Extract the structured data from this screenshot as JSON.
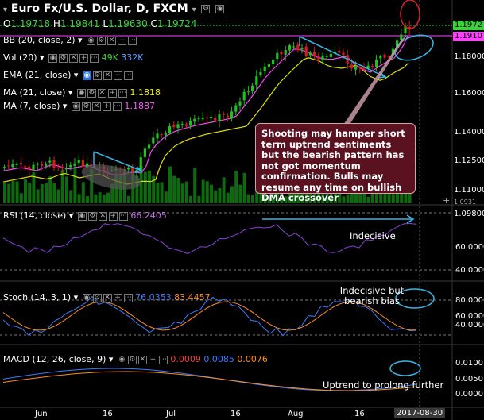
{
  "header": {
    "title": "Euro Fx/U.S. Dollar, D, FXCM",
    "ohlc": [
      {
        "label": "O",
        "value": "1.19718"
      },
      {
        "label": "H",
        "value": "1.19841"
      },
      {
        "label": "L",
        "value": "1.19630"
      },
      {
        "label": "C",
        "value": "1.19724"
      }
    ]
  },
  "indicators": [
    {
      "label": "BB (20, close, 2)",
      "value": "",
      "color": "#ffffff"
    },
    {
      "label": "Vol (20)",
      "value": "49K",
      "value2": "332K",
      "color": "#3cd23c",
      "color2": "#5aa0ff"
    },
    {
      "label": "EMA (21, close)",
      "value": "",
      "color": "#ffffff"
    },
    {
      "label": "MA (21, close)",
      "value": "1.1818",
      "color": "#f0f000"
    },
    {
      "label": "MA (7, close)",
      "value": "1.1887",
      "color": "#ff5aff"
    }
  ],
  "price_axis": {
    "labels": [
      "1.18000",
      "1.16000",
      "1.14000",
      "1.12500",
      "1.11000",
      "1.09800"
    ],
    "last_price": "1.1972",
    "ma_price": "1.1910",
    "bottom_partial": "1.0931"
  },
  "rsi": {
    "label": "RSI (14, close)",
    "value": "66.2405",
    "axis": [
      "60.0000",
      "40.0000"
    ],
    "annotation": "Indecisive"
  },
  "stoch": {
    "label": "Stoch (14, 3, 1)",
    "k": "76.0353",
    "d": "83.4457",
    "axis": [
      "80.0000",
      "60.0000",
      "40.0000"
    ],
    "annotation": "Indecisive but bearish bias"
  },
  "macd": {
    "label": "MACD (12, 26, close, 9)",
    "v1": "0.0009",
    "v2": "0.0085",
    "v3": "0.0076",
    "axis": [
      "0.0100",
      "0.0050",
      "0.0000"
    ],
    "annotation": "Uptrend to prolong further"
  },
  "callout": "Shooting may hamper short term uptrend sentiments but the bearish pattern has not got momentum confirmation. Bulls may resume any time on bullish DMA crossover",
  "time_axis": {
    "labels": [
      "Jun",
      "16",
      "Jul",
      "16",
      "Aug",
      "16"
    ],
    "current": "2017-08-30"
  },
  "colors": {
    "up": "#1fc11f",
    "down": "#d81b1b",
    "ma21": "#e0e000",
    "ma7": "#ff40ff",
    "volume": "#0c6b0c",
    "annotation": "#35b6e8"
  }
}
